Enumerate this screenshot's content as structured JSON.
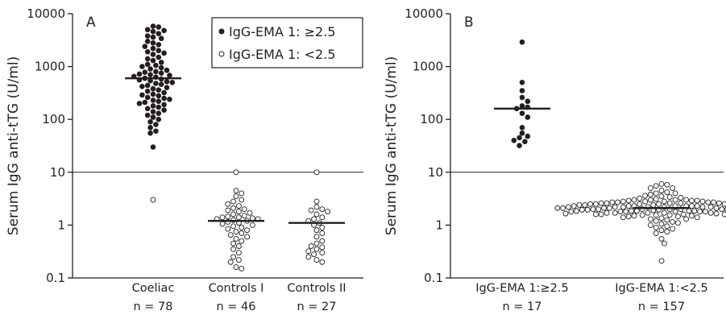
{
  "figure": {
    "legend": {
      "filled": "IgG-EMA 1: ≥2.5",
      "open": "IgG-EMA 1: <2.5"
    }
  },
  "chart_data": [
    {
      "type": "scatter",
      "panel": "A",
      "ylabel": "Serum IgG anti-tTG (U/ml)",
      "yscale": "log",
      "ylim": [
        0.1,
        10000
      ],
      "yticks": [
        "10000",
        "1000",
        "100",
        "10",
        "1",
        "0.1"
      ],
      "cutoff": 10,
      "legend_placement": "top-right",
      "groups": [
        {
          "label": "Coeliac",
          "n_label": "n = 78",
          "median": 600,
          "filled": [
            5800,
            5600,
            5000,
            4800,
            4600,
            4200,
            3800,
            3600,
            3400,
            3000,
            2800,
            2600,
            2400,
            2200,
            2000,
            1900,
            1800,
            1700,
            1500,
            1400,
            1300,
            1200,
            1100,
            1050,
            1000,
            950,
            900,
            850,
            800,
            780,
            750,
            720,
            700,
            680,
            650,
            630,
            600,
            580,
            560,
            540,
            520,
            500,
            480,
            460,
            440,
            420,
            400,
            380,
            360,
            340,
            320,
            300,
            290,
            280,
            260,
            250,
            240,
            230,
            220,
            210,
            200,
            190,
            180,
            170,
            160,
            150,
            140,
            130,
            120,
            110,
            100,
            90,
            80,
            70,
            60,
            55,
            30
          ],
          "open": [
            3
          ]
        },
        {
          "label": "Controls I",
          "n_label": "n = 46",
          "median": 1.2,
          "filled": [],
          "open": [
            10,
            4.5,
            4,
            3.5,
            3,
            2.8,
            2.5,
            2.3,
            2.1,
            2,
            1.9,
            1.8,
            1.7,
            1.6,
            1.5,
            1.45,
            1.4,
            1.35,
            1.3,
            1.25,
            1.2,
            1.15,
            1.1,
            1.05,
            1,
            0.95,
            0.9,
            0.85,
            0.8,
            0.75,
            0.7,
            0.65,
            0.6,
            0.55,
            0.5,
            0.45,
            0.4,
            0.35,
            0.3,
            0.25,
            0.22,
            0.2,
            0.16,
            0.15,
            1.4,
            1.3
          ]
        },
        {
          "label": "Controls II",
          "n_label": "n = 27",
          "median": 1.1,
          "filled": [],
          "open": [
            10,
            2.8,
            2.2,
            2,
            1.9,
            1.8,
            1.6,
            1.4,
            1.3,
            1.2,
            1.1,
            1,
            0.9,
            0.8,
            0.7,
            0.6,
            0.5,
            0.45,
            0.4,
            0.38,
            0.35,
            0.32,
            0.3,
            0.28,
            0.25,
            0.22,
            0.2
          ]
        }
      ]
    },
    {
      "type": "scatter",
      "panel": "B",
      "ylabel": "Serum IgG anti-tTG (U/ml)",
      "yscale": "log",
      "ylim": [
        0.1,
        10000
      ],
      "yticks": [
        "10000",
        "1000",
        "100",
        "10",
        "1",
        "0.1"
      ],
      "cutoff": 10,
      "groups": [
        {
          "label": "IgG-EMA 1:≥2.5",
          "n_label": "n = 17",
          "median": 160,
          "filled": [
            2900,
            500,
            350,
            260,
            220,
            180,
            170,
            160,
            130,
            110,
            70,
            55,
            48,
            45,
            40,
            38,
            32
          ],
          "open": []
        },
        {
          "label": "IgG-EMA 1:<2.5",
          "n_label": "n = 157",
          "median": 2.1,
          "filled": [],
          "open": [
            6,
            5.8,
            5.5,
            5,
            5,
            4.5,
            4.2,
            4,
            4,
            3.8,
            3.6,
            3.5,
            3.4,
            3.3,
            3.2,
            3.1,
            3,
            3,
            3,
            3,
            2.9,
            2.9,
            2.9,
            2.8,
            2.8,
            2.8,
            2.8,
            2.7,
            2.7,
            2.7,
            2.7,
            2.6,
            2.6,
            2.6,
            2.6,
            2.6,
            2.5,
            2.5,
            2.5,
            2.5,
            2.5,
            2.5,
            2.4,
            2.4,
            2.4,
            2.4,
            2.4,
            2.4,
            2.3,
            2.3,
            2.3,
            2.3,
            2.3,
            2.3,
            2.3,
            2.2,
            2.2,
            2.2,
            2.2,
            2.2,
            2.2,
            2.2,
            2.2,
            2.1,
            2.1,
            2.1,
            2.1,
            2.1,
            2.1,
            2.1,
            2.1,
            2.1,
            2,
            2,
            2,
            2,
            2,
            2,
            2,
            2,
            2,
            2,
            1.95,
            1.95,
            1.95,
            1.95,
            1.95,
            1.95,
            1.95,
            1.95,
            1.9,
            1.9,
            1.9,
            1.9,
            1.9,
            1.9,
            1.9,
            1.9,
            1.85,
            1.85,
            1.85,
            1.85,
            1.85,
            1.85,
            1.85,
            1.8,
            1.8,
            1.8,
            1.8,
            1.8,
            1.8,
            1.8,
            1.75,
            1.75,
            1.75,
            1.75,
            1.75,
            1.75,
            1.7,
            1.7,
            1.7,
            1.7,
            1.7,
            1.65,
            1.65,
            1.65,
            1.65,
            1.6,
            1.6,
            1.6,
            1.6,
            1.55,
            1.55,
            1.55,
            1.5,
            1.5,
            1.5,
            1.45,
            1.45,
            1.4,
            1.4,
            1.35,
            1.3,
            1.3,
            1.25,
            1.2,
            1.15,
            1.1,
            1.05,
            1,
            0.95,
            0.9,
            0.85,
            0.8,
            0.75,
            0.7,
            0.55,
            0.45,
            0.21
          ]
        }
      ]
    }
  ]
}
